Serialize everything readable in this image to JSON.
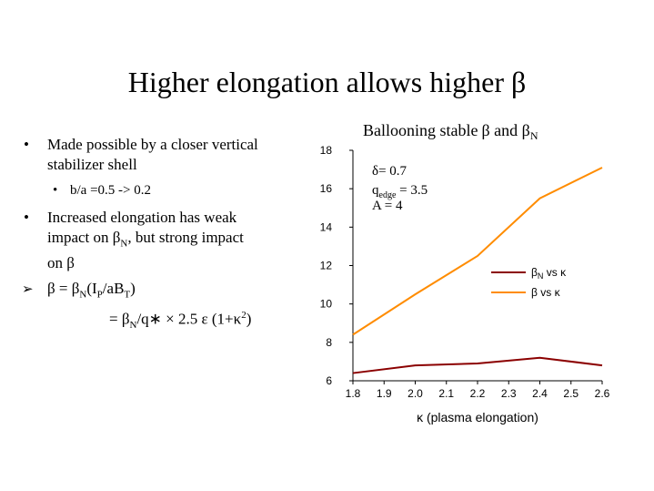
{
  "slide": {
    "title": "Higher elongation allows higher β"
  },
  "bullets": {
    "b1_mark": "•",
    "b1_line1": "Made possible by a closer vertical",
    "b1_line2": "stabilizer shell",
    "b1_sub_mark": "•",
    "b1_sub": "b/a =0.5 -> 0.2",
    "b2_mark": "•",
    "b2_line1": "Increased elongation has weak",
    "b2_line2_pre": "impact on β",
    "b2_line2_sub": "N",
    "b2_line2_post": ", but strong impact",
    "b2_line3": "on β",
    "b3_mark": "➢",
    "b3_pre": "β = β",
    "b3_sub1": "N",
    "b3_mid1": "(I",
    "b3_sub2": "P",
    "b3_mid2": "/aB",
    "b3_sub3": "T",
    "b3_post": ")",
    "b4_pre": "= β",
    "b4_sub": "N",
    "b4_mid": "/q∗ × 2.5 ε (1+κ",
    "b4_sup": "2",
    "b4_post": ")"
  },
  "chart_data": {
    "type": "line",
    "title_pre": "Ballooning stable",
    "title_beta": "β",
    "title_and": " and ",
    "title_betaN": "β",
    "title_betaN_sub": "N",
    "xlabel": "κ (plasma elongation)",
    "ylabel": "",
    "xlim": [
      1.8,
      2.6
    ],
    "ylim": [
      6,
      18
    ],
    "x_ticks": [
      "1.8",
      "1.9",
      "2.0",
      "2.1",
      "2.2",
      "2.3",
      "2.4",
      "2.5",
      "2.6"
    ],
    "y_ticks": [
      "6",
      "8",
      "10",
      "12",
      "14",
      "16",
      "18"
    ],
    "annotation": {
      "delta": "δ= 0.7",
      "q_pre": "q",
      "q_sub": "edge",
      "q_post": " = 3.5",
      "A": "A = 4"
    },
    "series": [
      {
        "name": "βN vs κ",
        "legend_pre": "β",
        "legend_sub": "N",
        "legend_post": " vs κ",
        "color": "#8b0000",
        "x": [
          1.8,
          2.0,
          2.2,
          2.4,
          2.6
        ],
        "y": [
          6.4,
          6.8,
          6.9,
          7.2,
          6.8
        ]
      },
      {
        "name": "β vs κ",
        "legend_pre": "β",
        "legend_sub": "",
        "legend_post": " vs κ",
        "color": "#ff8c00",
        "x": [
          1.8,
          2.0,
          2.2,
          2.4,
          2.6
        ],
        "y": [
          8.4,
          10.5,
          12.5,
          15.5,
          17.1
        ]
      }
    ],
    "grid": false,
    "legend_position": "right"
  }
}
